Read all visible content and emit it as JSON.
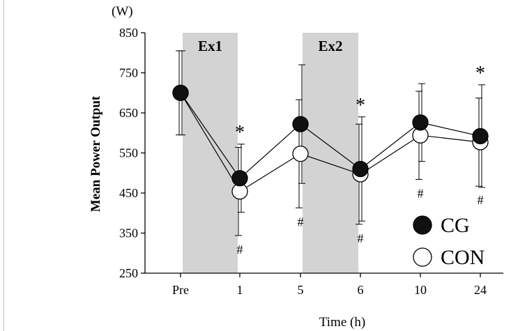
{
  "chart_data": {
    "type": "line",
    "categories": [
      "Pre",
      "1",
      "5",
      "6",
      "10",
      "24"
    ],
    "unit": "(W)",
    "ylabel": "Mean Power Output",
    "xlabel": "Time (h)",
    "ylim": [
      250,
      850
    ],
    "yticks": [
      250,
      350,
      450,
      550,
      650,
      750,
      850
    ],
    "shaded_regions": [
      {
        "label": "Ex1",
        "from": "Pre",
        "to": "1"
      },
      {
        "label": "Ex2",
        "from": "5",
        "to": "6"
      }
    ],
    "series": [
      {
        "name": "CG",
        "marker": "filled",
        "values": [
          700,
          487,
          622,
          510,
          626,
          592
        ],
        "error": [
          105,
          85,
          148,
          130,
          97,
          128
        ]
      },
      {
        "name": "CON",
        "marker": "open",
        "values": [
          700,
          454,
          548,
          497,
          594,
          577
        ],
        "error": [
          105,
          110,
          135,
          125,
          110,
          110
        ]
      }
    ],
    "annotations": [
      {
        "text": "*",
        "category": "1"
      },
      {
        "text": "*",
        "category": "6"
      },
      {
        "text": "*",
        "category": "24"
      },
      {
        "text": "#",
        "category": "1"
      },
      {
        "text": "#",
        "category": "5"
      },
      {
        "text": "#",
        "category": "6"
      },
      {
        "text": "#",
        "category": "10"
      },
      {
        "text": "#",
        "category": "24"
      }
    ],
    "legend_placement": "bottom-right",
    "colors": {
      "filled": "#111111",
      "open": "#ffffff",
      "shade": "#d3d3d3"
    }
  }
}
